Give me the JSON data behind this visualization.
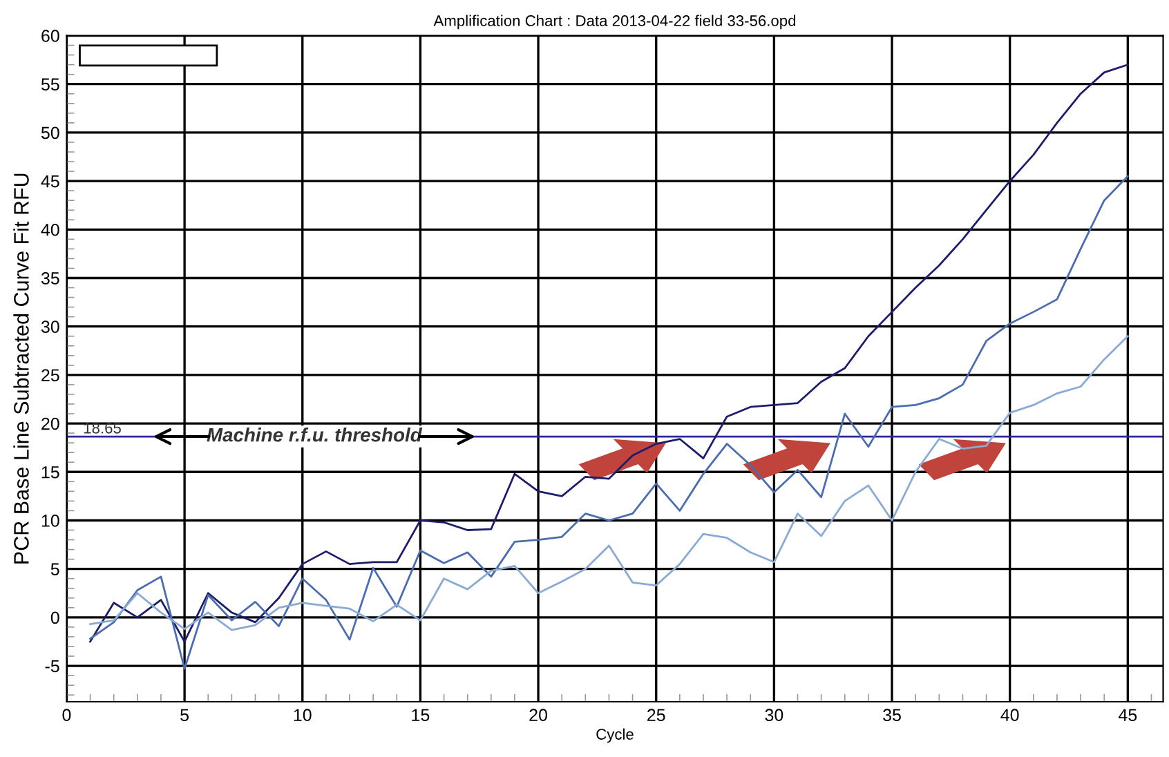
{
  "chart_data": {
    "type": "line",
    "title": "Amplification Chart : Data 2013-04-22 field 33-56.opd",
    "xlabel": "Cycle",
    "ylabel": "PCR Base Line Subtracted Curve Fit RFU",
    "x": [
      1,
      2,
      3,
      4,
      5,
      6,
      7,
      8,
      9,
      10,
      11,
      12,
      13,
      14,
      15,
      16,
      17,
      18,
      19,
      20,
      21,
      22,
      23,
      24,
      25,
      26,
      27,
      28,
      29,
      30,
      31,
      32,
      33,
      34,
      35,
      36,
      37,
      38,
      39,
      40,
      41,
      42,
      43,
      44,
      45
    ],
    "series": [
      {
        "color": "#1c1c6e",
        "values": [
          -2.5,
          1.5,
          0,
          1.8,
          -2.5,
          2.5,
          0.5,
          -0.5,
          2,
          5.5,
          6.8,
          5.5,
          5.7,
          5.7,
          10,
          9.8,
          9,
          9.1,
          14.8,
          13,
          12.5,
          14.5,
          14.3,
          16.7,
          17.9,
          18.4,
          16.4,
          20.7,
          21.7,
          21.9,
          22.1,
          24.3,
          25.7,
          29,
          31.5,
          34,
          36.3,
          39,
          42,
          45,
          47.7,
          51,
          54,
          56.2,
          57
        ]
      },
      {
        "color": "#4a6cb0",
        "values": [
          -2.2,
          -0.5,
          2.8,
          4.2,
          -5.3,
          2.3,
          -0.3,
          1.6,
          -0.9,
          4,
          1.8,
          -2.3,
          5.1,
          1.1,
          6.9,
          5.6,
          6.7,
          4.2,
          7.8,
          8,
          8.3,
          10.7,
          10,
          10.7,
          13.8,
          11,
          14.8,
          17.9,
          15.7,
          12.9,
          15.2,
          12.4,
          21,
          17.6,
          21.7,
          21.9,
          22.6,
          24,
          28.5,
          30.3,
          31.5,
          32.8,
          38,
          43,
          45.5
        ]
      },
      {
        "color": "#8aaad6",
        "values": [
          -0.7,
          -0.3,
          2.5,
          0.5,
          -1.2,
          0.5,
          -1.3,
          -0.8,
          1,
          1.5,
          1.2,
          0.9,
          -0.4,
          1.3,
          -0.3,
          4,
          2.9,
          4.8,
          5.3,
          2.5,
          3.7,
          5,
          7.4,
          3.6,
          3.3,
          5.5,
          8.6,
          8.2,
          6.7,
          5.7,
          10.7,
          8.4,
          12,
          13.6,
          10,
          15,
          18.4,
          17.4,
          17.7,
          21.1,
          21.9,
          23.1,
          23.8,
          26.6,
          29
        ]
      }
    ],
    "xlim": [
      0,
      46.5
    ],
    "ylim": [
      -8.7,
      60
    ],
    "xticks": [
      0,
      5,
      10,
      15,
      20,
      25,
      30,
      35,
      40,
      45
    ],
    "yticks": [
      -5,
      0,
      5,
      10,
      15,
      20,
      25,
      30,
      35,
      40,
      45,
      50,
      55,
      60
    ],
    "ref_lines": [
      {
        "axis": "y",
        "value": 18.65,
        "label": "18.65",
        "color": "#2a2a9a"
      }
    ],
    "annotations": [
      {
        "text": "Machine r.f.u. threshold",
        "x": 10.5,
        "y": 18.65
      }
    ],
    "grid": true,
    "marker": "none",
    "line_style": "solid"
  }
}
